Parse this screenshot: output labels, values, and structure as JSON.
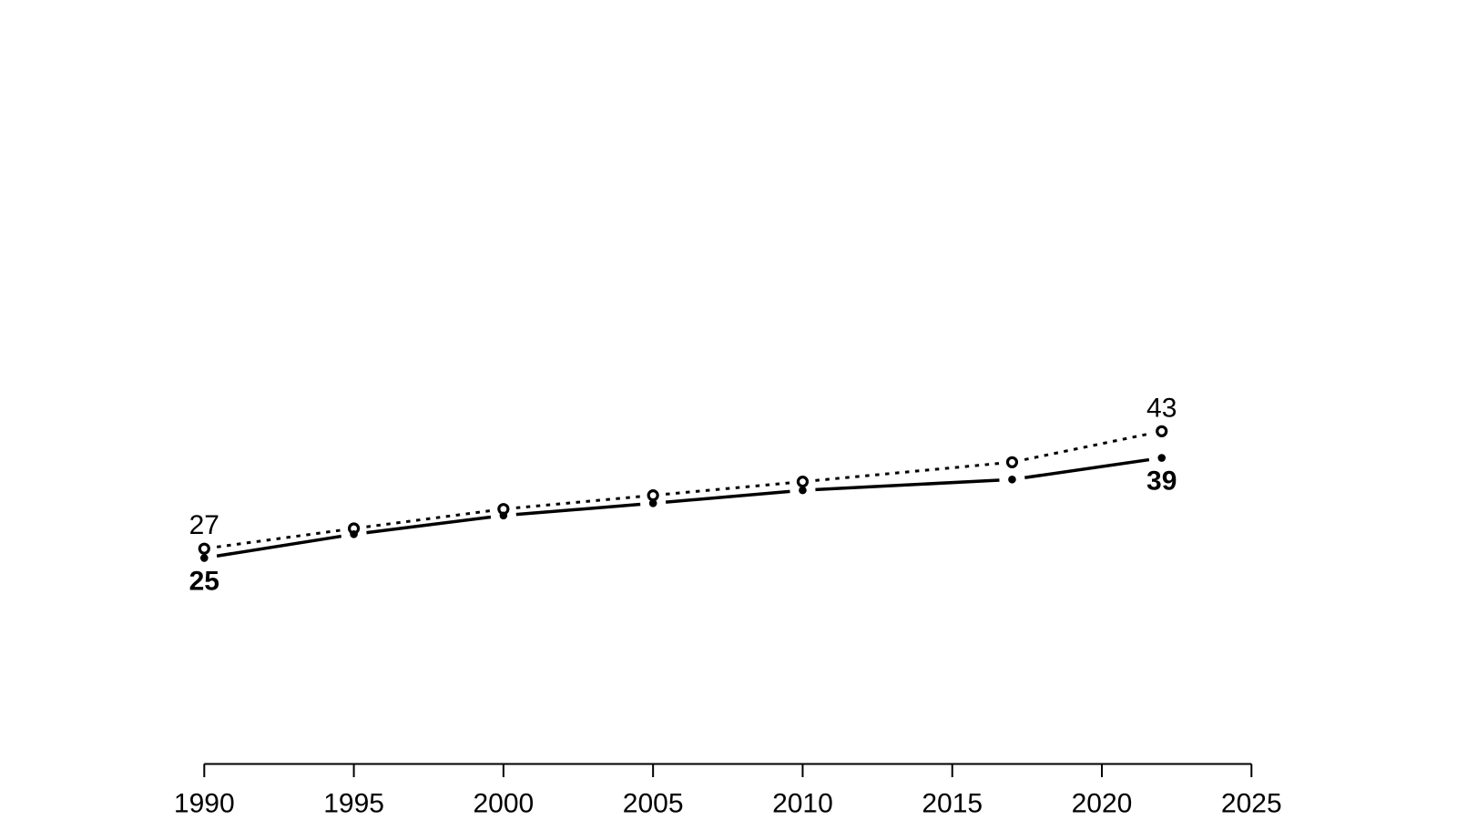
{
  "page": {
    "background_color": "#ffffff",
    "foreground_color": "#000000"
  },
  "chart_data": {
    "type": "line",
    "title": "",
    "xlabel": "",
    "ylabel": "",
    "grid": false,
    "legend": "none",
    "background": "#ffffff",
    "axis_color": "#000000",
    "xlim": [
      1990,
      2025
    ],
    "ylim": [
      22,
      46
    ],
    "x_ticks": [
      "1990",
      "1995",
      "2000",
      "2005",
      "2010",
      "2015",
      "2020",
      "2025"
    ],
    "x": [
      1990,
      1995,
      2000,
      2005,
      2010,
      2017,
      2022
    ],
    "series": [
      {
        "name": "upper-dotted-series",
        "values": [
          26.6,
          29.4,
          32.1,
          34.0,
          35.9,
          38.6,
          42.9
        ],
        "color": "#000000",
        "line_style": "dotted",
        "marker": "open-circle",
        "first_label": "27",
        "last_label": "43",
        "label_position": "above",
        "label_weight": "normal"
      },
      {
        "name": "lower-solid-series",
        "values": [
          25.3,
          28.6,
          31.2,
          32.9,
          34.7,
          36.2,
          39.2
        ],
        "color": "#000000",
        "line_style": "solid",
        "marker": "filled-dot",
        "first_label": "25",
        "last_label": "39",
        "label_position": "below",
        "label_weight": "bold"
      }
    ]
  }
}
